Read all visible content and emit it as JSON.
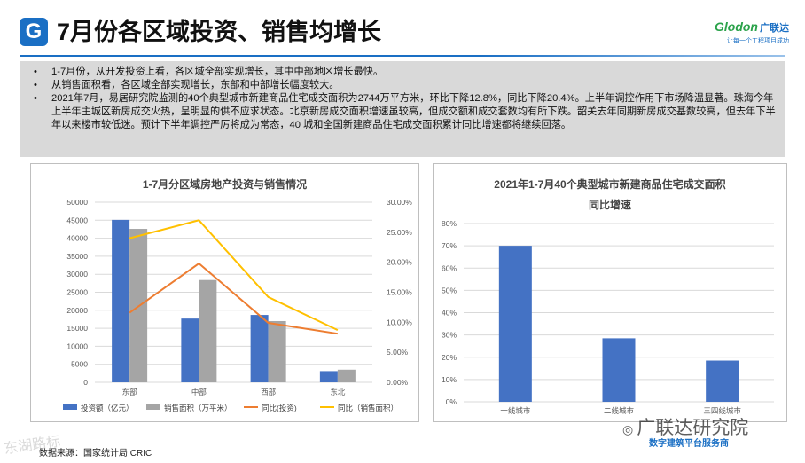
{
  "header": {
    "logo_letter": "G",
    "title": "7月份各区域投资、销售均增长",
    "brand_name": "Glodon",
    "brand_cn": "广联达",
    "brand_tagline": "让每一个工程项目成功"
  },
  "bullets": [
    {
      "dot": "•",
      "text": "1-7月份，从开发投资上看，各区域全部实现增长，其中中部地区增长最快。"
    },
    {
      "dot": "•",
      "text": "从销售面积看，各区域全部实现增长，东部和中部增长幅度较大。"
    },
    {
      "dot": "•",
      "text": "2021年7月，易居研究院监测的40个典型城市新建商品住宅成交面积为2744万平方米，环比下降12.8%，同比下降20.4%。上半年调控作用下市场降温显著。珠海今年上半年主城区新房成交火热，呈明显的供不应求状态。北京新房成交面积增速虽较高，但成交额和成交套数均有所下跌。韶关去年同期新房成交基数较高，但去年下半年以来楼市较低迷。预计下半年调控严厉将成为常态，40 城和全国新建商品住宅成交面积累计同比增速都将继续回落。"
    }
  ],
  "chart_data": [
    {
      "type": "bar",
      "title": "1-7月分区域房地产投资与销售情况",
      "categories": [
        "东部",
        "中部",
        "西部",
        "东北"
      ],
      "series": [
        {
          "name": "投资额（亿元）",
          "kind": "bar",
          "axis": "left",
          "color": "#4472c4",
          "values": [
            45100,
            17700,
            18700,
            3100
          ]
        },
        {
          "name": "销售面积（万平米）",
          "kind": "bar",
          "axis": "left",
          "color": "#a5a5a5",
          "values": [
            42600,
            28400,
            17000,
            3500
          ]
        },
        {
          "name": "同比(投资)",
          "kind": "line",
          "axis": "right",
          "color": "#ed7d31",
          "values": [
            0.116,
            0.198,
            0.099,
            0.081
          ]
        },
        {
          "name": "同比（销售面积）",
          "kind": "line",
          "axis": "right",
          "color": "#ffc000",
          "values": [
            0.24,
            0.27,
            0.142,
            0.087
          ]
        }
      ],
      "ylim_left": [
        0,
        50000
      ],
      "left_ticks": [
        "0",
        "5000",
        "10000",
        "15000",
        "20000",
        "25000",
        "30000",
        "35000",
        "40000",
        "45000",
        "50000"
      ],
      "ylim_right": [
        0,
        0.3
      ],
      "right_ticks": [
        "0.00%",
        "5.00%",
        "10.00%",
        "15.00%",
        "20.00%",
        "25.00%",
        "30.00%"
      ],
      "grid": true,
      "legend": "bottom"
    },
    {
      "type": "bar",
      "title_line1": "2021年1-7月40个典型城市新建商品住宅成交面积",
      "title_line2": "同比增速",
      "categories": [
        "一线城市",
        "二线城市",
        "三四线城市"
      ],
      "values": [
        0.7,
        0.285,
        0.185
      ],
      "color": "#4472c4",
      "ylim": [
        0,
        0.8
      ],
      "ticks": [
        "0%",
        "10%",
        "20%",
        "30%",
        "40%",
        "50%",
        "60%",
        "70%",
        "80%"
      ],
      "grid": true
    }
  ],
  "footer": {
    "source": "数据来源：国家统计局 CRIC",
    "watermark_left": "东湖路标",
    "watermark_right": "广联达研究院",
    "platform_text": "数字建筑平台服务商"
  }
}
